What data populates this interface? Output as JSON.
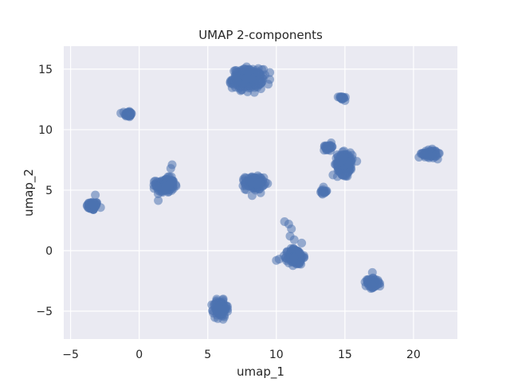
{
  "chart_data": {
    "type": "scatter",
    "title": "UMAP 2-components",
    "xlabel": "umap_1",
    "ylabel": "umap_2",
    "xlim": [
      -5.5,
      23.2
    ],
    "ylim": [
      -7.3,
      16.9
    ],
    "xticks": [
      -5,
      0,
      5,
      10,
      15,
      20
    ],
    "yticks": [
      -5,
      0,
      5,
      10,
      15
    ],
    "grid": true,
    "colors": {
      "point": "#4c72b0",
      "background": "#eaeaf2",
      "grid": "#ffffff"
    },
    "clusters": [
      {
        "center": [
          -3.4,
          3.7
        ],
        "spread": [
          0.35,
          0.3
        ],
        "count": 70
      },
      {
        "center": [
          -0.8,
          11.3
        ],
        "spread": [
          0.22,
          0.22
        ],
        "count": 40
      },
      {
        "center": [
          1.9,
          5.4
        ],
        "spread": [
          0.55,
          0.5
        ],
        "count": 180
      },
      {
        "center": [
          7.9,
          14.2
        ],
        "spread": [
          0.9,
          0.65
        ],
        "count": 320
      },
      {
        "center": [
          8.4,
          5.6
        ],
        "spread": [
          0.55,
          0.45
        ],
        "count": 150
      },
      {
        "center": [
          5.9,
          -4.8
        ],
        "spread": [
          0.4,
          0.55
        ],
        "count": 120
      },
      {
        "center": [
          11.4,
          -0.5
        ],
        "spread": [
          0.45,
          0.55
        ],
        "count": 180
      },
      {
        "center": [
          15.0,
          7.2
        ],
        "spread": [
          0.45,
          0.75
        ],
        "count": 220
      },
      {
        "center": [
          13.8,
          8.6
        ],
        "spread": [
          0.3,
          0.2
        ],
        "count": 30
      },
      {
        "center": [
          14.8,
          12.6
        ],
        "spread": [
          0.2,
          0.1
        ],
        "count": 18
      },
      {
        "center": [
          13.4,
          4.9
        ],
        "spread": [
          0.25,
          0.25
        ],
        "count": 15
      },
      {
        "center": [
          17.0,
          -2.7
        ],
        "spread": [
          0.4,
          0.3
        ],
        "count": 80
      },
      {
        "center": [
          21.2,
          8.0
        ],
        "spread": [
          0.45,
          0.25
        ],
        "count": 90
      }
    ],
    "points": [
      [
        10.6,
        2.4
      ],
      [
        10.9,
        2.2
      ],
      [
        11.1,
        1.8
      ],
      [
        11.0,
        1.2
      ],
      [
        11.3,
        0.9
      ],
      [
        10.0,
        -0.8
      ],
      [
        10.2,
        -0.7
      ],
      [
        17.0,
        -1.8
      ],
      [
        16.6,
        -2.4
      ],
      [
        -3.2,
        4.6
      ],
      [
        2.4,
        7.1
      ],
      [
        2.3,
        6.8
      ],
      [
        14.5,
        12.7
      ],
      [
        15.0,
        12.4
      ]
    ]
  }
}
